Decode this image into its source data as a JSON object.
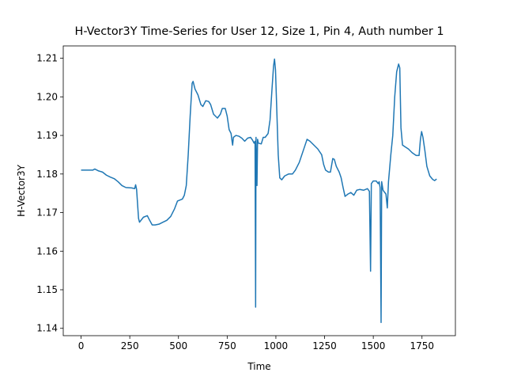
{
  "chart_data": {
    "type": "line",
    "title": "H-Vector3Y Time-Series for User 12, Size 1, Pin 4, Auth number 1",
    "xlabel": "Time",
    "ylabel": "H-Vector3Y",
    "xlim": [
      -91.5,
      1921.5
    ],
    "ylim": [
      1.1381,
      1.2132
    ],
    "xticks": [
      0,
      250,
      500,
      750,
      1000,
      1250,
      1500,
      1750
    ],
    "yticks": [
      1.14,
      1.15,
      1.16,
      1.17,
      1.18,
      1.19,
      {
        "value": 1.2,
        "label": "1.20"
      },
      1.21
    ],
    "grid": false,
    "x": [
      0,
      20,
      60,
      70,
      90,
      110,
      130,
      150,
      170,
      190,
      210,
      230,
      260,
      275,
      280,
      285,
      295,
      300,
      320,
      340,
      350,
      365,
      380,
      400,
      420,
      440,
      460,
      480,
      495,
      520,
      530,
      540,
      550,
      560,
      570,
      575,
      585,
      600,
      615,
      625,
      640,
      655,
      665,
      680,
      700,
      715,
      725,
      740,
      750,
      760,
      770,
      775,
      778,
      782,
      795,
      810,
      825,
      840,
      855,
      870,
      880,
      888,
      893,
      896,
      898,
      903,
      906,
      910,
      925,
      935,
      945,
      960,
      970,
      980,
      988,
      993,
      998,
      1005,
      1012,
      1020,
      1030,
      1045,
      1065,
      1085,
      1100,
      1120,
      1140,
      1160,
      1175,
      1195,
      1215,
      1235,
      1245,
      1255,
      1270,
      1280,
      1292,
      1300,
      1310,
      1325,
      1335,
      1345,
      1355,
      1370,
      1385,
      1400,
      1415,
      1430,
      1450,
      1470,
      1480,
      1486,
      1490,
      1500,
      1515,
      1525,
      1530,
      1535,
      1540,
      1543,
      1550,
      1565,
      1572,
      1578,
      1590,
      1600,
      1610,
      1620,
      1630,
      1636,
      1642,
      1650,
      1665,
      1680,
      1700,
      1720,
      1735,
      1742,
      1748,
      1755,
      1765,
      1775,
      1790,
      1805,
      1815,
      1825
    ],
    "series": [
      {
        "name": "H-Vector3Y",
        "color": "#1f77b4",
        "values": [
          1.181,
          1.181,
          1.181,
          1.1813,
          1.1808,
          1.1805,
          1.1797,
          1.1792,
          1.1788,
          1.178,
          1.177,
          1.1765,
          1.1764,
          1.1762,
          1.1772,
          1.176,
          1.1685,
          1.1675,
          1.1688,
          1.1692,
          1.1682,
          1.1668,
          1.1668,
          1.167,
          1.1675,
          1.168,
          1.169,
          1.171,
          1.173,
          1.1735,
          1.1745,
          1.177,
          1.185,
          1.195,
          1.2035,
          1.204,
          1.202,
          1.2005,
          1.198,
          1.1975,
          1.199,
          1.1988,
          1.198,
          1.1955,
          1.1945,
          1.1955,
          1.197,
          1.197,
          1.195,
          1.1915,
          1.1905,
          1.1885,
          1.1875,
          1.1895,
          1.19,
          1.1898,
          1.1893,
          1.1885,
          1.1893,
          1.1895,
          1.1888,
          1.188,
          1.1885,
          1.1455,
          1.1895,
          1.177,
          1.189,
          1.188,
          1.1878,
          1.1895,
          1.1895,
          1.1905,
          1.194,
          1.202,
          1.208,
          1.2098,
          1.207,
          1.196,
          1.185,
          1.179,
          1.1785,
          1.1795,
          1.18,
          1.18,
          1.181,
          1.183,
          1.186,
          1.189,
          1.1885,
          1.1875,
          1.1865,
          1.185,
          1.1825,
          1.181,
          1.1805,
          1.1805,
          1.184,
          1.1838,
          1.182,
          1.1805,
          1.179,
          1.1765,
          1.1742,
          1.1748,
          1.1752,
          1.1745,
          1.1758,
          1.176,
          1.1758,
          1.1762,
          1.1755,
          1.1548,
          1.1775,
          1.1782,
          1.1782,
          1.1775,
          1.178,
          1.1765,
          1.1415,
          1.178,
          1.1758,
          1.1748,
          1.1712,
          1.178,
          1.185,
          1.19,
          1.2,
          1.2065,
          1.2085,
          1.2075,
          1.192,
          1.1875,
          1.187,
          1.1865,
          1.1855,
          1.1848,
          1.1848,
          1.189,
          1.191,
          1.1895,
          1.186,
          1.182,
          1.1795,
          1.1786,
          1.1783,
          1.1787
        ]
      }
    ]
  }
}
